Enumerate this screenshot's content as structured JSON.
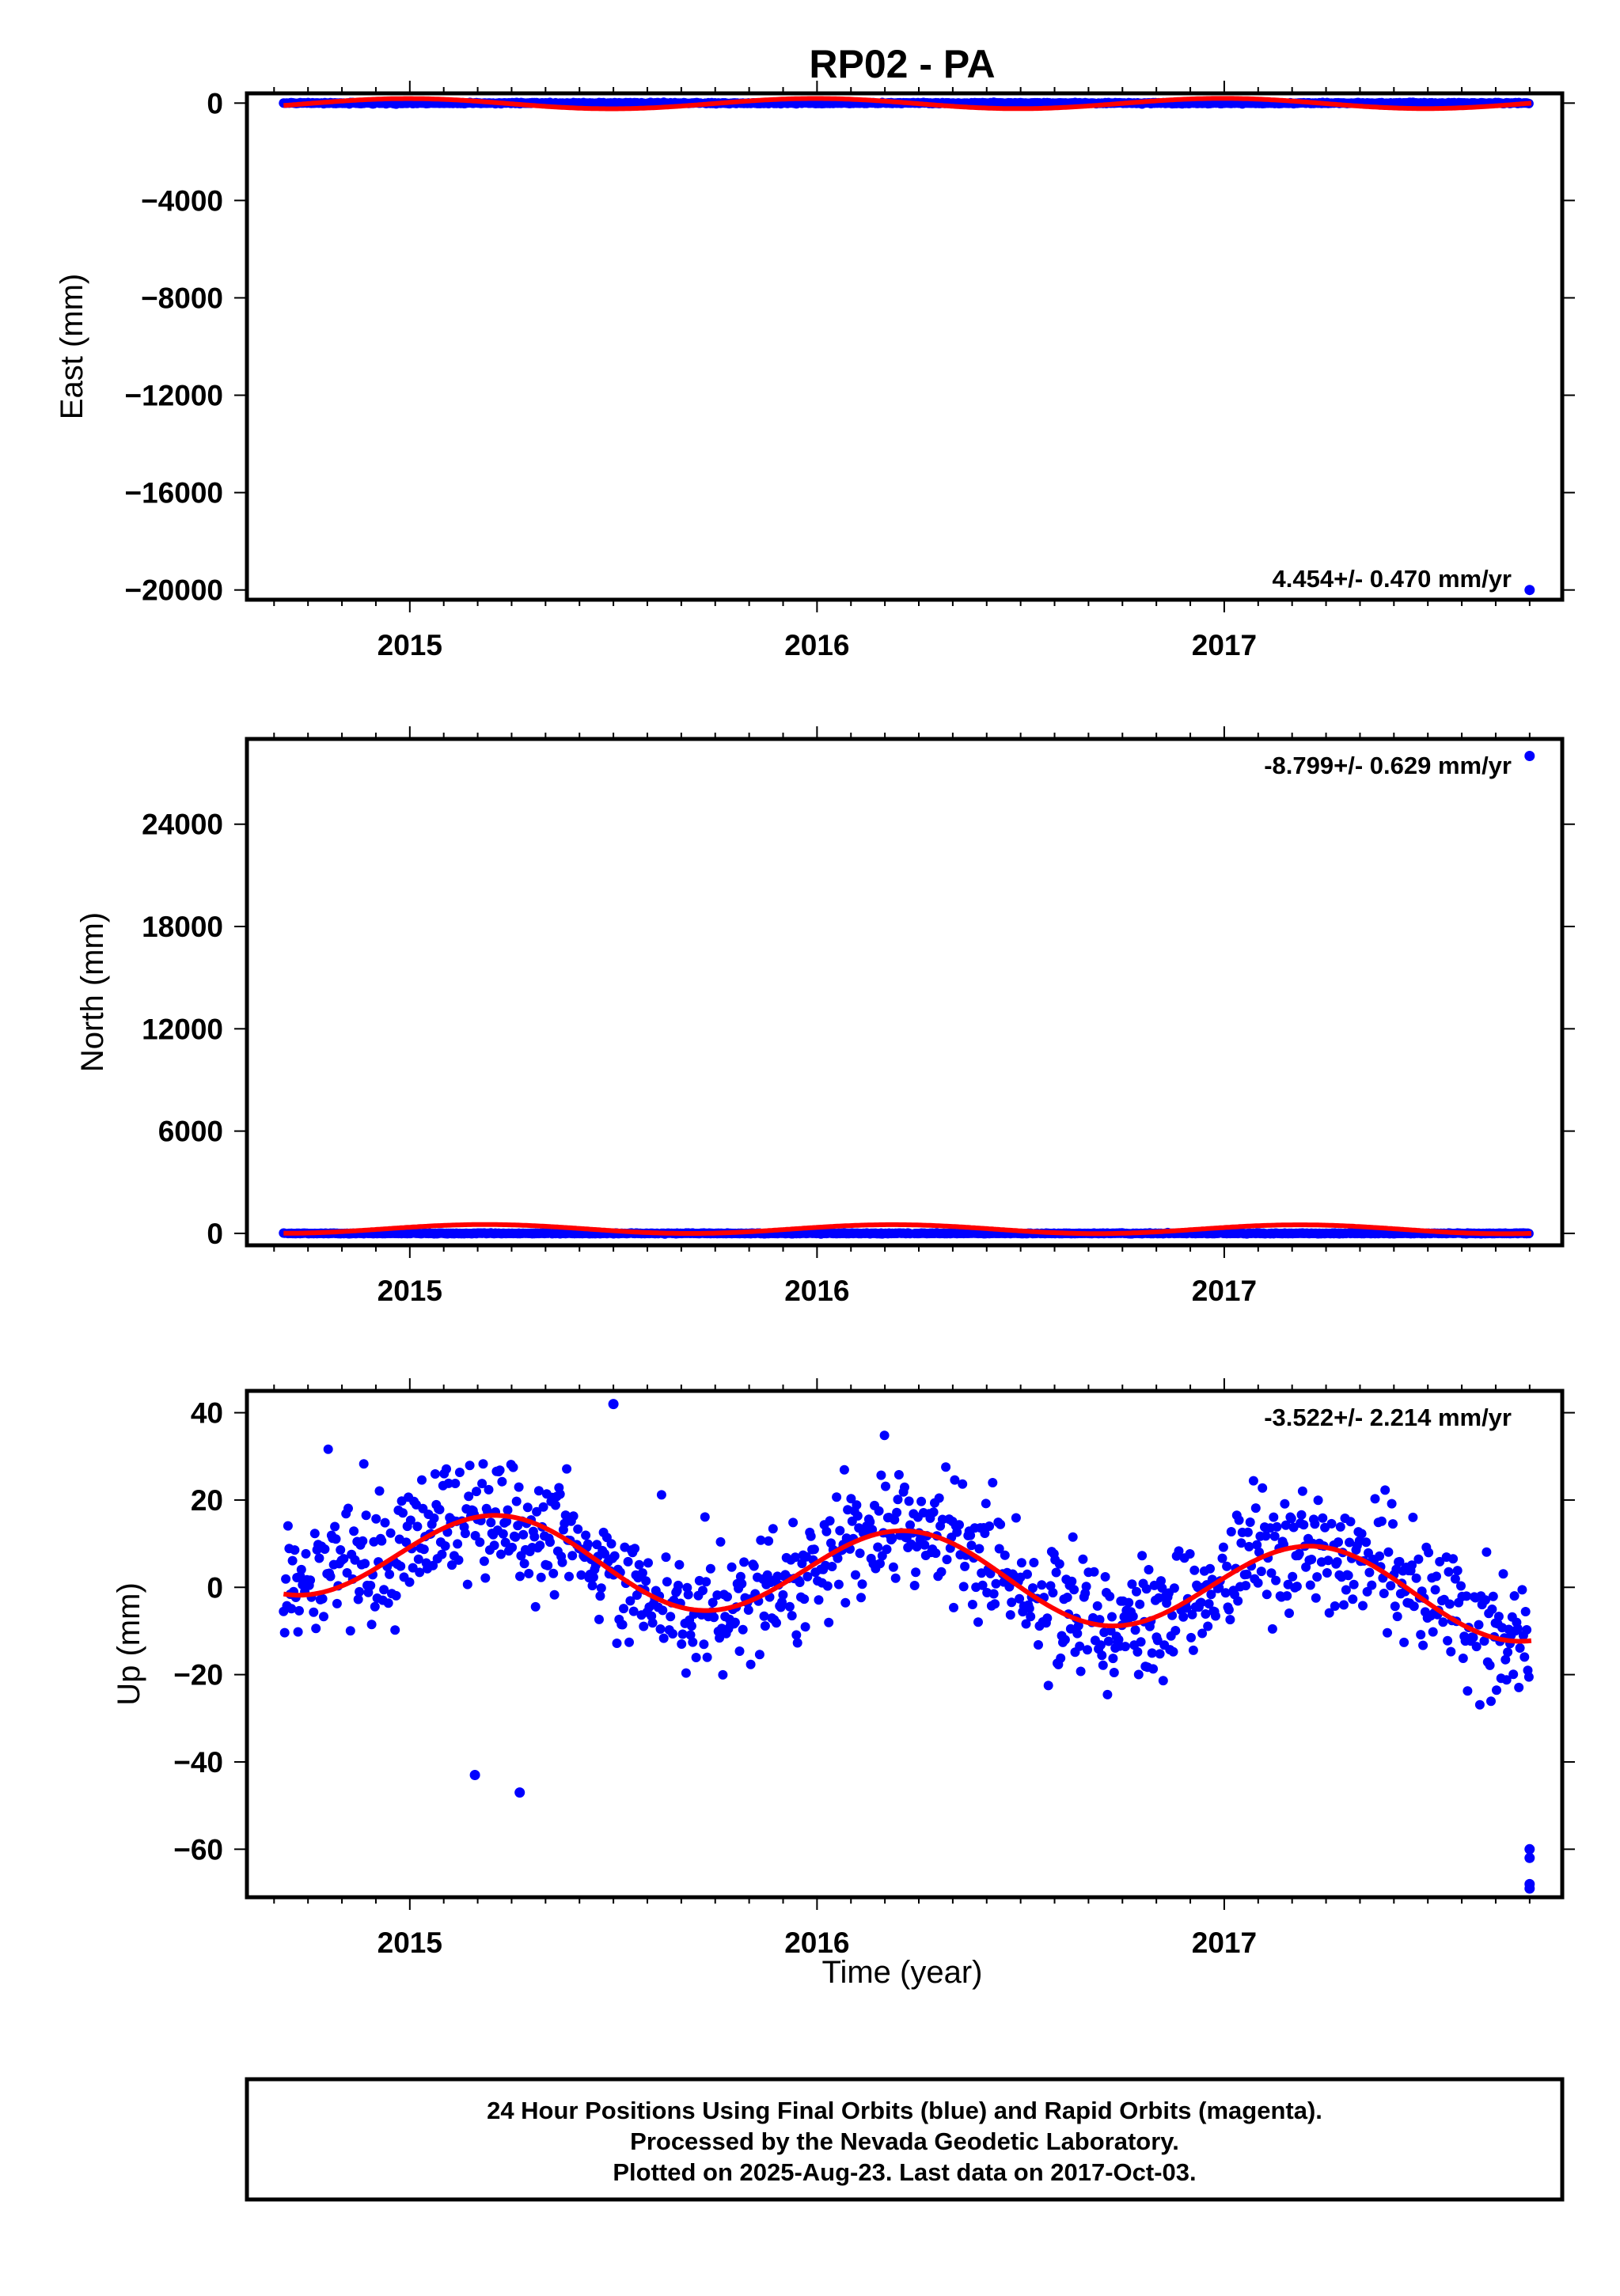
{
  "title": "RP02 - PA",
  "colors": {
    "final_orbits": "#0000ff",
    "rapid_orbits": "#ff00ff",
    "model_fit": "#ff0000",
    "frame": "#000000"
  },
  "footer": {
    "line1": "24 Hour Positions Using Final Orbits (blue) and Rapid Orbits (magenta).",
    "line2": "Processed by the Nevada Geodetic Laboratory.",
    "line3": "Plotted on 2025-Aug-23. Last data on 2017-Oct-03."
  },
  "xlabel": "Time (year)",
  "chart_data": [
    {
      "type": "scatter",
      "name": "east",
      "ylabel": "East (mm)",
      "rate_label": "4.454+/- 0.470 mm/yr",
      "xlim": [
        2014.6,
        2017.83
      ],
      "ylim": [
        -20400,
        400
      ],
      "xticks": [
        2015,
        2016,
        2017
      ],
      "yticks": [
        0,
        -4000,
        -8000,
        -12000,
        -16000,
        -20000
      ],
      "grid": false,
      "series_points": "daily positions near 0 mm from 2014.69 to 2017.75; one outlier at 2017.75",
      "outliers": [
        {
          "x": 2017.75,
          "y": -20000
        }
      ],
      "fit": {
        "trend_mm_per_yr": 4.454,
        "offset_mm": -20,
        "annual_amplitude_mm": 210,
        "phase": 1.6
      }
    },
    {
      "type": "scatter",
      "name": "north",
      "ylabel": "North (mm)",
      "rate_label": "-8.799+/- 0.629 mm/yr",
      "xlim": [
        2014.6,
        2017.83
      ],
      "ylim": [
        -700,
        29000
      ],
      "xticks": [
        2015,
        2016,
        2017
      ],
      "yticks": [
        0,
        6000,
        12000,
        18000,
        24000
      ],
      "grid": false,
      "series_points": "daily positions near 0 mm from 2014.69 to 2017.75; one outlier at 2017.75",
      "outliers": [
        {
          "x": 2017.75,
          "y": 28000
        }
      ],
      "fit": {
        "trend_mm_per_yr": -8.799,
        "offset_mm": 250,
        "annual_amplitude_mm": 260,
        "phase": 0.4
      }
    },
    {
      "type": "scatter",
      "name": "up",
      "ylabel": "Up (mm)",
      "rate_label": "-3.522+/- 2.214 mm/yr",
      "xlim": [
        2014.6,
        2017.83
      ],
      "ylim": [
        -71,
        45
      ],
      "xticks": [
        2015,
        2016,
        2017
      ],
      "yticks": [
        40,
        20,
        0,
        -20,
        -40,
        -60
      ],
      "grid": false,
      "series_points": "daily positions from 2014.69 to 2017.75 scattered about an annual model with about 7 mm noise",
      "outliers": [
        {
          "x": 2015.16,
          "y": -43
        },
        {
          "x": 2015.27,
          "y": -47
        },
        {
          "x": 2015.5,
          "y": 42
        },
        {
          "x": 2017.75,
          "y": -60
        },
        {
          "x": 2017.75,
          "y": -62
        },
        {
          "x": 2017.75,
          "y": -68
        },
        {
          "x": 2017.75,
          "y": -69
        }
      ],
      "fit": {
        "trend_mm_per_yr": -3.522,
        "offset_mm": 3,
        "annual_amplitude_mm": 10,
        "phase": 0.2
      }
    }
  ]
}
